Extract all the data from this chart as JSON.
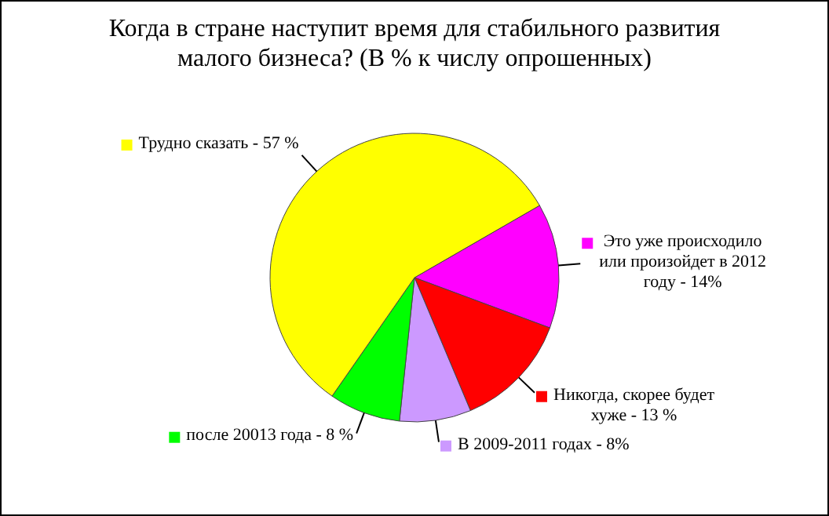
{
  "chart_data": {
    "type": "pie",
    "title": "Когда в стране наступит время для стабильного развития малого бизнеса? (В % к числу опрошенных)",
    "categories": [
      "Это уже происходило или произойдет в 2012 году -",
      "Никогда, скорее будет хуже -",
      "В 2009-2011 годах -",
      "после 20013 года -",
      "Трудно сказать -"
    ],
    "values": [
      14,
      13,
      8,
      8,
      57
    ],
    "value_labels": [
      "14%",
      "13 %",
      "8%",
      "8 %",
      "57 %"
    ],
    "colors": [
      "#ff00ff",
      "#ff0000",
      "#cc99ff",
      "#00ff00",
      "#ffff00"
    ],
    "legend": true
  }
}
